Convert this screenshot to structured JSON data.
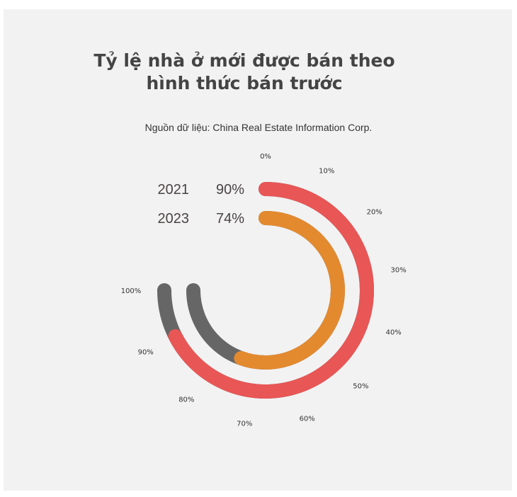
{
  "title": {
    "line1": "Tỷ lệ nhà ở mới được bán theo",
    "line2": "hình thức bán trước"
  },
  "subtitle": "Nguồn dữ liệu: China Real Estate Information Corp.",
  "colors": {
    "background": "#f2f2f2",
    "series_2021": "#e85656",
    "series_2023": "#e38a2f",
    "remainder": "#666666"
  },
  "chart_data": {
    "type": "radial-bar",
    "title": "Tỷ lệ nhà ở mới được bán theo hình thức bán trước",
    "subtitle": "Nguồn dữ liệu: China Real Estate Information Corp.",
    "axis": {
      "min": 0,
      "max": 100,
      "ticks": [
        "0%",
        "10%",
        "20%",
        "30%",
        "40%",
        "50%",
        "60%",
        "70%",
        "80%",
        "90%",
        "100%"
      ]
    },
    "series": [
      {
        "name": "2021",
        "value": 90,
        "label": "90%"
      },
      {
        "name": "2023",
        "value": 74,
        "label": "74%"
      }
    ],
    "max_sweep_degrees": 270
  }
}
